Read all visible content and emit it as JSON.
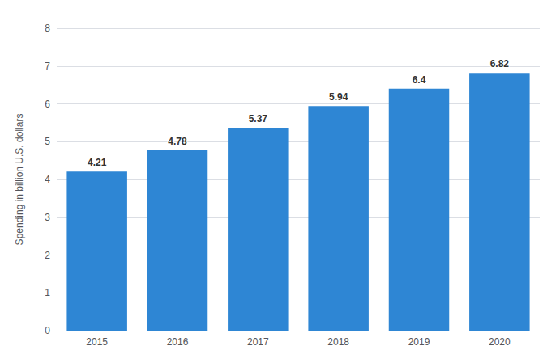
{
  "chart_data": {
    "type": "bar",
    "categories": [
      "2015",
      "2016",
      "2017",
      "2018",
      "2019",
      "2020"
    ],
    "values": [
      4.21,
      4.78,
      5.37,
      5.94,
      6.4,
      6.82
    ],
    "color": "#2e86d4",
    "ylabel": "Spending in billion U.S. dollars",
    "ylim": [
      0,
      8
    ],
    "yticks": [
      0,
      1,
      2,
      3,
      4,
      5,
      6,
      7,
      8
    ],
    "grid": true,
    "data_labels": true
  }
}
